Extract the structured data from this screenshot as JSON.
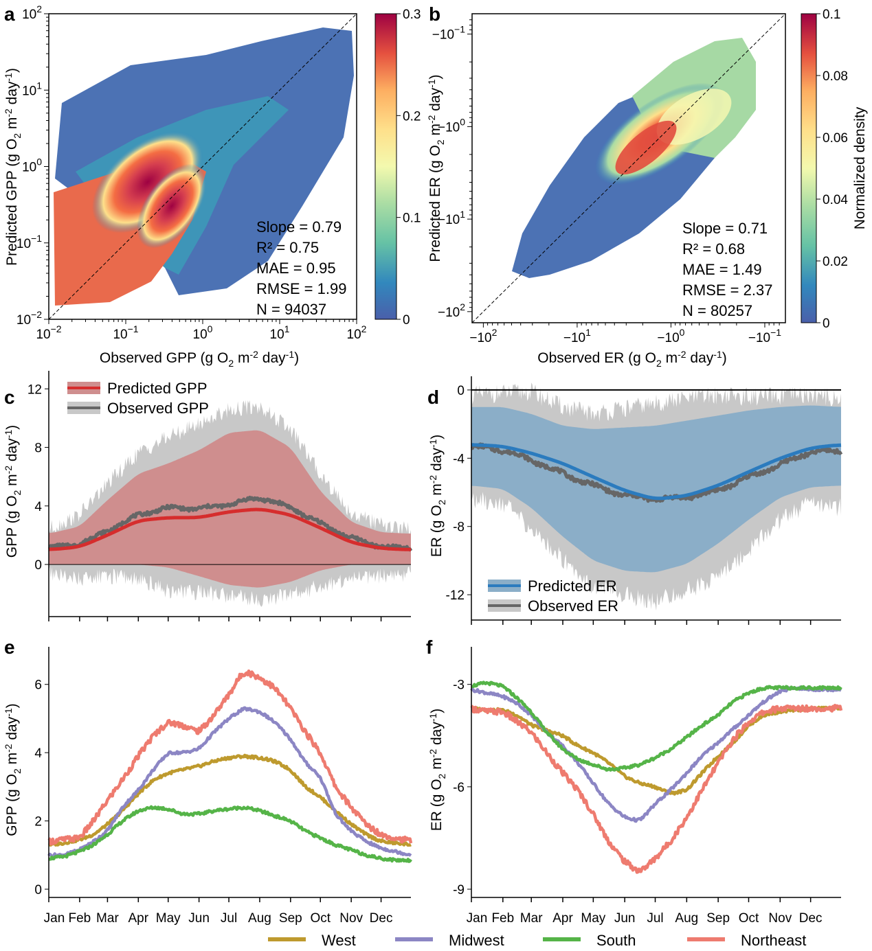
{
  "figure": {
    "months": [
      "Jan",
      "Feb",
      "Mar",
      "Apr",
      "May",
      "Jun",
      "Jul",
      "Aug",
      "Sep",
      "Oct",
      "Nov",
      "Dec"
    ],
    "region_legend": [
      {
        "name": "West",
        "color": "#BE9A2E"
      },
      {
        "name": "Midwest",
        "color": "#8C86C4"
      },
      {
        "name": "South",
        "color": "#55B448"
      },
      {
        "name": "Northeast",
        "color": "#EE7B6F"
      }
    ]
  },
  "chart_data": [
    {
      "panel": "a",
      "type": "scatter",
      "title": "",
      "xlabel": "Observed GPP (g O2 m-2 day-1)",
      "ylabel": "Predicted GPP (g O2 m-2 day-1)",
      "xscale": "log",
      "yscale": "log",
      "xlim": [
        0.01,
        100
      ],
      "ylim": [
        0.01,
        100
      ],
      "xticks": [
        "10^-2",
        "10^-1",
        "10^0",
        "10^1",
        "10^2"
      ],
      "yticks": [
        "10^-2",
        "10^-1",
        "10^0",
        "10^1",
        "10^2"
      ],
      "one_to_one_line": true,
      "density_colorbar": {
        "label": "",
        "range": [
          0,
          0.3
        ],
        "ticks": [
          "0",
          "0.1",
          "0.2",
          "0.3"
        ]
      },
      "density_core": {
        "x": 0.4,
        "y": 0.4
      },
      "stats": [
        "Slope = 0.79",
        "R² = 0.75",
        "MAE = 0.95",
        "RMSE = 1.99",
        "N = 94037"
      ]
    },
    {
      "panel": "b",
      "type": "scatter",
      "title": "",
      "xlabel": "Observed ER (g O2 m-2 day-1)",
      "ylabel": "Predicted ER (g O2 m-2 day-1)",
      "xscale": "symlog-negative",
      "yscale": "symlog-negative",
      "xlim": [
        -100,
        -0.06
      ],
      "ylim": [
        -100,
        -0.06
      ],
      "xticks": [
        "−10^2",
        "−10^1",
        "−10^0",
        "−10^-1"
      ],
      "yticks": [
        "−10^2",
        "−10^1",
        "−10^0",
        "−10^-1"
      ],
      "one_to_one_line": true,
      "density_colorbar": {
        "label": "Normalized density",
        "range": [
          0,
          0.1
        ],
        "ticks": [
          "0",
          "0.02",
          "0.04",
          "0.06",
          "0.08",
          "0.1"
        ]
      },
      "density_core": {
        "x": -1.5,
        "y": -1.5
      },
      "stats": [
        "Slope = 0.71",
        "R² = 0.68",
        "MAE = 1.49",
        "RMSE = 2.37",
        "N = 80257"
      ]
    },
    {
      "panel": "c",
      "type": "area",
      "ylabel": "GPP (g O2 m-2 day-1)",
      "ylim": [
        -3,
        13
      ],
      "yticks": [
        0,
        4,
        8,
        12
      ],
      "x": [
        1,
        32,
        60,
        91,
        121,
        152,
        182,
        213,
        244,
        274,
        305,
        335,
        365
      ],
      "series": [
        {
          "name": "Predicted GPP",
          "color": "#D62D2D",
          "band_color": "#CF8E8E",
          "mean": [
            1.0,
            1.2,
            2.0,
            3.0,
            3.2,
            3.2,
            3.6,
            3.8,
            3.4,
            2.5,
            1.5,
            1.1,
            1.0
          ],
          "upper": [
            2.1,
            2.6,
            4.4,
            6.2,
            6.9,
            7.8,
            9.0,
            9.2,
            8.0,
            5.0,
            2.9,
            2.2,
            2.1
          ],
          "lower": [
            0.0,
            0.0,
            0.0,
            0.0,
            -0.2,
            -0.8,
            -1.4,
            -1.6,
            -1.2,
            -0.4,
            0.0,
            0.0,
            0.0
          ]
        },
        {
          "name": "Observed GPP",
          "color": "#666666",
          "band_color": "#C8C8C8",
          "mean": [
            1.1,
            1.4,
            2.3,
            3.4,
            3.9,
            3.8,
            4.1,
            4.6,
            3.9,
            2.8,
            1.8,
            1.2,
            1.1
          ],
          "upper": [
            2.4,
            3.4,
            5.5,
            7.6,
            8.7,
            9.6,
            10.6,
            10.8,
            9.2,
            6.2,
            3.5,
            2.7,
            2.4
          ],
          "lower": [
            -0.6,
            -1.0,
            -0.8,
            -0.9,
            -1.8,
            -1.9,
            -2.1,
            -2.4,
            -2.1,
            -1.5,
            -1.0,
            -0.8,
            -0.6
          ]
        }
      ]
    },
    {
      "panel": "d",
      "type": "area",
      "ylabel": "ER (g O2 m-2 day-1)",
      "ylim": [
        -13,
        0.6
      ],
      "yticks": [
        0,
        -4,
        -8,
        -12
      ],
      "x": [
        1,
        32,
        60,
        91,
        121,
        152,
        182,
        213,
        244,
        274,
        305,
        335,
        365
      ],
      "series": [
        {
          "name": "Predicted ER",
          "color": "#2B7BBE",
          "band_color": "#8BAEC8",
          "mean": [
            -3.2,
            -3.3,
            -3.7,
            -4.3,
            -5.1,
            -5.9,
            -6.4,
            -6.2,
            -5.6,
            -4.8,
            -4.0,
            -3.4,
            -3.2
          ],
          "upper": [
            -1.0,
            -1.0,
            -1.4,
            -2.1,
            -2.3,
            -2.2,
            -2.1,
            -1.8,
            -1.5,
            -1.2,
            -1.0,
            -0.9,
            -1.0
          ],
          "lower": [
            -5.6,
            -5.8,
            -6.9,
            -8.6,
            -10.0,
            -10.6,
            -10.7,
            -10.2,
            -9.0,
            -7.6,
            -6.3,
            -5.7,
            -5.6
          ]
        },
        {
          "name": "Observed ER",
          "color": "#666666",
          "band_color": "#C8C8C8",
          "mean": [
            -3.3,
            -3.5,
            -4.1,
            -4.9,
            -5.6,
            -6.2,
            -6.4,
            -6.3,
            -5.9,
            -5.1,
            -4.4,
            -3.6,
            -3.6
          ],
          "upper": [
            -0.3,
            -0.2,
            -0.1,
            -1.0,
            -1.4,
            -1.1,
            -0.8,
            -0.5,
            -0.3,
            -0.4,
            -0.4,
            -0.3,
            -0.5
          ],
          "lower": [
            -6.4,
            -6.6,
            -8.2,
            -9.9,
            -11.5,
            -12.0,
            -12.4,
            -11.8,
            -10.9,
            -9.4,
            -7.6,
            -6.6,
            -6.9
          ]
        }
      ]
    },
    {
      "panel": "e",
      "type": "line",
      "ylabel": "GPP (g O2 m-2 day-1)",
      "ylim": [
        0,
        7
      ],
      "yticks": [
        0,
        2,
        4,
        6
      ],
      "xticklabels": [
        "Jan",
        "Feb",
        "Mar",
        "Apr",
        "May",
        "Jun",
        "Jul",
        "Aug",
        "Sep",
        "Oct",
        "Nov",
        "Dec"
      ],
      "x": [
        1,
        16,
        32,
        46,
        60,
        75,
        91,
        106,
        121,
        136,
        152,
        167,
        182,
        197,
        213,
        228,
        244,
        259,
        274,
        289,
        305,
        320,
        335,
        350,
        365
      ],
      "series": [
        {
          "name": "West",
          "color": "#BE9A2E",
          "values": [
            1.3,
            1.35,
            1.45,
            1.6,
            1.9,
            2.3,
            2.8,
            3.2,
            3.4,
            3.5,
            3.6,
            3.75,
            3.85,
            3.9,
            3.85,
            3.75,
            3.5,
            3.0,
            2.7,
            2.3,
            1.9,
            1.6,
            1.4,
            1.35,
            1.3
          ]
        },
        {
          "name": "Midwest",
          "color": "#8C86C4",
          "values": [
            1.0,
            1.0,
            1.15,
            1.4,
            1.7,
            2.4,
            2.9,
            3.5,
            4.0,
            4.0,
            4.1,
            4.6,
            5.0,
            5.3,
            5.2,
            4.9,
            4.4,
            3.7,
            3.3,
            2.2,
            1.7,
            1.4,
            1.2,
            1.1,
            1.0
          ]
        },
        {
          "name": "South",
          "color": "#55B448",
          "values": [
            0.9,
            0.95,
            1.1,
            1.3,
            1.6,
            2.0,
            2.3,
            2.4,
            2.35,
            2.2,
            2.2,
            2.3,
            2.35,
            2.4,
            2.3,
            2.15,
            2.0,
            1.7,
            1.5,
            1.3,
            1.15,
            1.0,
            0.9,
            0.85,
            0.85
          ]
        },
        {
          "name": "Northeast",
          "color": "#EE7B6F",
          "values": [
            1.4,
            1.45,
            1.5,
            2.0,
            2.6,
            3.2,
            3.9,
            4.5,
            4.9,
            4.8,
            4.6,
            5.1,
            5.7,
            6.4,
            6.2,
            5.9,
            5.3,
            4.6,
            4.0,
            3.0,
            2.4,
            1.9,
            1.6,
            1.5,
            1.4
          ]
        }
      ]
    },
    {
      "panel": "f",
      "type": "line",
      "ylabel": "ER (g O2 m-2 day-1)",
      "ylim": [
        -9,
        -2
      ],
      "yticks": [
        -3,
        -6,
        -9
      ],
      "xticklabels": [
        "Jan",
        "Feb",
        "Mar",
        "Apr",
        "May",
        "Jun",
        "Jul",
        "Aug",
        "Sep",
        "Oct",
        "Nov",
        "Dec"
      ],
      "x": [
        1,
        16,
        32,
        46,
        60,
        75,
        91,
        106,
        121,
        136,
        152,
        167,
        182,
        197,
        213,
        228,
        244,
        259,
        274,
        289,
        305,
        320,
        335,
        350,
        365
      ],
      "series": [
        {
          "name": "West",
          "color": "#BE9A2E",
          "values": [
            -3.7,
            -3.75,
            -3.75,
            -3.9,
            -4.2,
            -4.35,
            -4.5,
            -4.8,
            -5.0,
            -5.3,
            -5.7,
            -5.9,
            -6.0,
            -6.2,
            -6.1,
            -5.6,
            -5.1,
            -4.7,
            -4.2,
            -3.9,
            -3.8,
            -3.75,
            -3.7,
            -3.7,
            -3.7
          ]
        },
        {
          "name": "Midwest",
          "color": "#8C86C4",
          "values": [
            -3.15,
            -3.25,
            -3.35,
            -3.55,
            -3.9,
            -4.4,
            -4.8,
            -5.3,
            -5.9,
            -6.5,
            -6.9,
            -7.0,
            -6.5,
            -6.1,
            -5.6,
            -5.1,
            -4.7,
            -4.3,
            -3.9,
            -3.5,
            -3.2,
            -3.1,
            -3.15,
            -3.15,
            -3.15
          ]
        },
        {
          "name": "South",
          "color": "#55B448",
          "values": [
            -3.05,
            -2.95,
            -3.05,
            -3.4,
            -3.8,
            -4.4,
            -4.9,
            -5.2,
            -5.35,
            -5.5,
            -5.45,
            -5.35,
            -5.15,
            -4.9,
            -4.55,
            -4.2,
            -3.9,
            -3.5,
            -3.25,
            -3.1,
            -3.1,
            -3.1,
            -3.1,
            -3.1,
            -3.1
          ]
        },
        {
          "name": "Northeast",
          "color": "#EE7B6F",
          "values": [
            -3.7,
            -3.8,
            -3.8,
            -4.1,
            -4.4,
            -5.0,
            -5.6,
            -6.1,
            -6.8,
            -7.6,
            -8.2,
            -8.5,
            -8.1,
            -7.6,
            -6.9,
            -6.1,
            -5.3,
            -4.6,
            -4.1,
            -3.8,
            -3.7,
            -3.7,
            -3.7,
            -3.7,
            -3.7
          ]
        }
      ]
    }
  ]
}
